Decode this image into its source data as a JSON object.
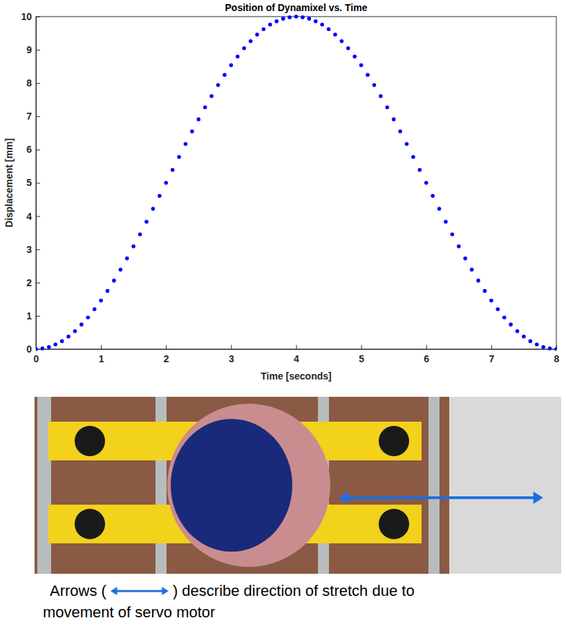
{
  "chart_data": {
    "type": "scatter",
    "title": "Position of Dynamixel vs. Time",
    "x_label": "Time [seconds]",
    "y_label": "Displacement [mm]",
    "x": [
      0,
      0.1,
      0.2,
      0.3,
      0.4,
      0.5,
      0.6,
      0.7,
      0.8,
      0.9,
      1,
      1.1,
      1.2,
      1.3,
      1.4,
      1.5,
      1.6,
      1.7,
      1.8,
      1.9,
      2,
      2.1,
      2.2,
      2.3,
      2.4,
      2.5,
      2.6,
      2.7,
      2.8,
      2.9,
      3,
      3.1,
      3.2,
      3.3,
      3.4,
      3.5,
      3.6,
      3.7,
      3.8,
      3.9,
      4,
      4.1,
      4.2,
      4.3,
      4.4,
      4.5,
      4.6,
      4.7,
      4.8,
      4.9,
      5,
      5.1,
      5.2,
      5.3,
      5.4,
      5.5,
      5.6,
      5.7,
      5.8,
      5.9,
      6,
      6.1,
      6.2,
      6.3,
      6.4,
      6.5,
      6.6,
      6.7,
      6.8,
      6.9,
      7,
      7.1,
      7.2,
      7.3,
      7.4,
      7.5,
      7.6,
      7.7,
      7.8,
      7.9,
      8
    ],
    "values": [
      0,
      0.02,
      0.06,
      0.14,
      0.24,
      0.38,
      0.54,
      0.74,
      0.95,
      1.2,
      1.46,
      1.75,
      2.06,
      2.39,
      2.73,
      3.09,
      3.45,
      3.83,
      4.22,
      4.61,
      5,
      5.39,
      5.78,
      6.17,
      6.55,
      6.91,
      7.27,
      7.61,
      7.94,
      8.25,
      8.54,
      8.8,
      9.05,
      9.26,
      9.46,
      9.62,
      9.76,
      9.86,
      9.94,
      9.98,
      10,
      9.98,
      9.94,
      9.86,
      9.76,
      9.62,
      9.46,
      9.26,
      9.05,
      8.8,
      8.54,
      8.25,
      7.94,
      7.61,
      7.27,
      6.91,
      6.55,
      6.17,
      5.78,
      5.39,
      5,
      4.61,
      4.22,
      3.83,
      3.45,
      3.09,
      2.73,
      2.39,
      2.06,
      1.75,
      1.46,
      1.2,
      0.95,
      0.74,
      0.54,
      0.38,
      0.24,
      0.14,
      0.06,
      0.02,
      0
    ],
    "color": "#0000ff",
    "marker": "circle",
    "line_style": "none",
    "grid": false,
    "xlim": [
      0,
      8
    ],
    "xticks": [
      0,
      1,
      2,
      3,
      4,
      5,
      6,
      7,
      8
    ],
    "ylim": [
      0,
      10
    ],
    "yticks": [
      0,
      1,
      2,
      3,
      4,
      5,
      6,
      7,
      8,
      9,
      10
    ]
  },
  "photo": {
    "caption": [
      "Arrows (",
      ") describe direction of stretch due to",
      "movement of servo motor"
    ]
  }
}
